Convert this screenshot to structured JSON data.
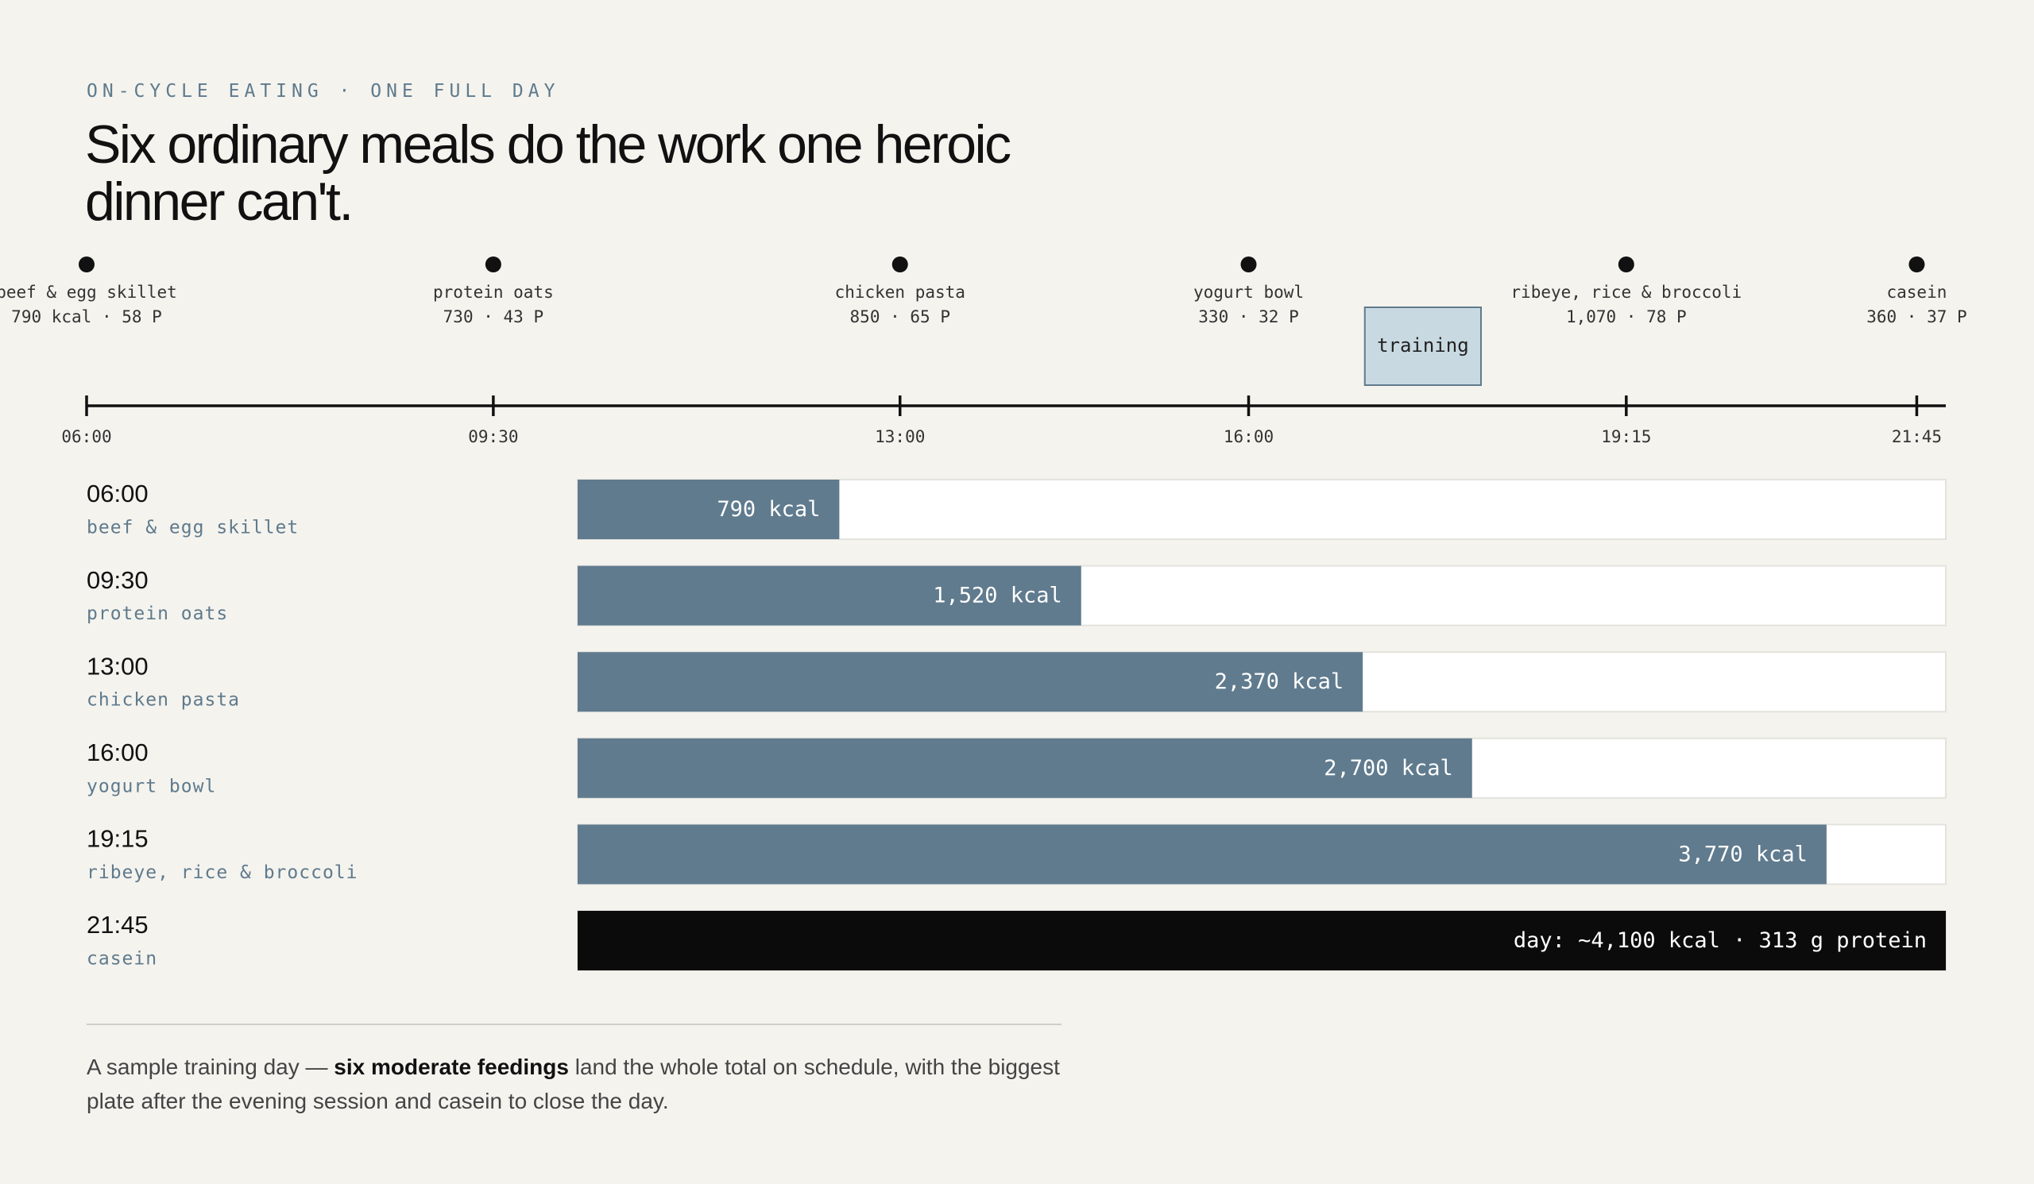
{
  "chart_data": {
    "type": "bar",
    "eyebrow": "ON-CYCLE EATING · ONE FULL DAY",
    "title": "Six ordinary meals do the work one heroic dinner can't.",
    "xlim": [
      6,
      22
    ],
    "xticks": [
      {
        "value": 6,
        "label": "06:00"
      },
      {
        "value": 9.5,
        "label": "09:30"
      },
      {
        "value": 13,
        "label": "13:00"
      },
      {
        "value": 16,
        "label": "16:00"
      },
      {
        "value": 19.25,
        "label": "19:15"
      },
      {
        "value": 21.75,
        "label": "21:45"
      }
    ],
    "x": [
      6,
      9.5,
      13,
      16,
      19.25,
      21.75
    ],
    "meals": [
      "beef & egg skillet",
      "protein oats",
      "chicken pasta",
      "yogurt bowl",
      "ribeye, rice & broccoli",
      "casein"
    ],
    "details": [
      "790 kcal · 58 P",
      "730 · 43 P",
      "850 · 65 P",
      "330 · 32 P",
      "1,070 · 78 P",
      "360 · 37 P"
    ],
    "training": {
      "label": "training",
      "start": 17,
      "end": 18
    },
    "bars": {
      "values": [
        790,
        1520,
        2370,
        2700,
        3770,
        4130
      ],
      "value_labels": [
        "790 kcal",
        "1,520 kcal",
        "2,370 kcal",
        "2,700 kcal",
        "3,770 kcal",
        "day: ~4,100 kcal · 313 g protein"
      ],
      "xlim": [
        0,
        4130
      ],
      "color": "#607b8e",
      "total_color": "#0b0b0b"
    },
    "note": [
      "A sample training day — ",
      "six moderate feedings",
      " land the whole total on schedule, with the biggest plate after the evening session and casein to close the day."
    ]
  }
}
